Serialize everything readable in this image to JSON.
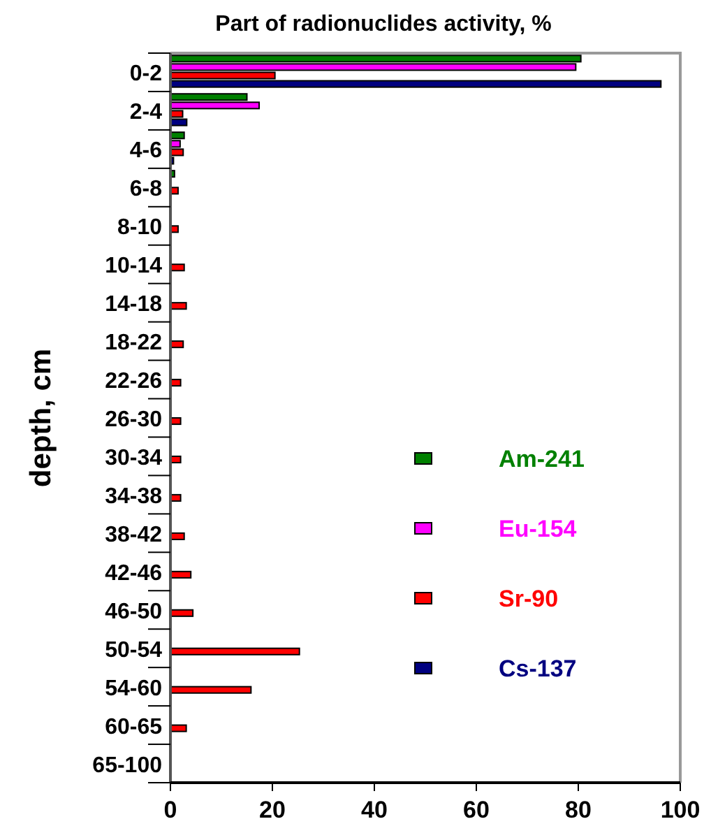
{
  "chart_data": {
    "type": "bar",
    "orientation": "horizontal",
    "title": "Part of radionuclides activity, %",
    "ylabel": "depth, cm",
    "categories": [
      "0-2",
      "2-4",
      "4-6",
      "6-8",
      "8-10",
      "10-14",
      "14-18",
      "18-22",
      "22-26",
      "26-30",
      "30-34",
      "34-38",
      "38-42",
      "42-46",
      "46-50",
      "50-54",
      "54-60",
      "60-65",
      "65-100"
    ],
    "series": [
      {
        "name": "Am-241",
        "color": "#008000",
        "values": [
          80.5,
          15,
          2.7,
          0.8,
          null,
          null,
          null,
          null,
          null,
          null,
          null,
          null,
          null,
          null,
          null,
          null,
          null,
          null,
          null
        ]
      },
      {
        "name": "Eu-154",
        "color": "#ff00ff",
        "values": [
          79.5,
          17.4,
          1.9,
          null,
          null,
          null,
          null,
          null,
          null,
          null,
          null,
          null,
          null,
          null,
          null,
          null,
          null,
          null,
          null
        ]
      },
      {
        "name": "Sr-90",
        "color": "#ff0000",
        "values": [
          20.5,
          2.4,
          2.5,
          1.5,
          1.5,
          2.7,
          3.1,
          2.5,
          2,
          2,
          2,
          2,
          2.7,
          4,
          4.4,
          25.3,
          15.8,
          3.1,
          null
        ]
      },
      {
        "name": "Cs-137",
        "color": "#000080",
        "values": [
          96.2,
          3.2,
          0.6,
          null,
          null,
          null,
          null,
          null,
          null,
          null,
          null,
          null,
          null,
          null,
          null,
          null,
          null,
          null,
          null
        ]
      }
    ],
    "xlim": [
      0,
      100
    ],
    "xticks": [
      0,
      20,
      40,
      60,
      80,
      100
    ],
    "grid": false,
    "legend": "right"
  }
}
